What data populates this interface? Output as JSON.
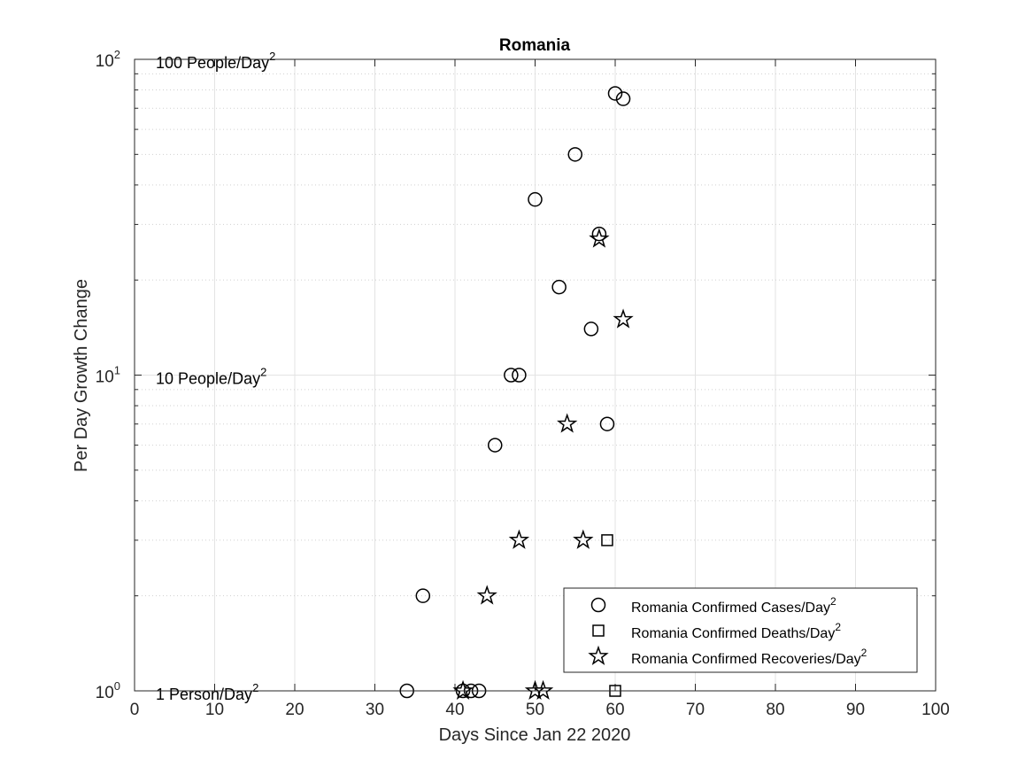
{
  "chart_data": {
    "type": "scatter",
    "title": "Romania",
    "xlabel": "Days Since Jan 22 2020",
    "ylabel": "Per Day Growth Change",
    "xlim": [
      0,
      100
    ],
    "ylim": [
      1,
      100
    ],
    "yscale": "log",
    "grid": true,
    "legend_position": "bottom-right",
    "x_ticks": [
      "0",
      "10",
      "20",
      "30",
      "40",
      "50",
      "60",
      "70",
      "80",
      "90",
      "100"
    ],
    "y_ticks": [
      {
        "value": 1,
        "base": "10",
        "exp": "0"
      },
      {
        "value": 10,
        "base": "10",
        "exp": "1"
      },
      {
        "value": 100,
        "base": "10",
        "exp": "2"
      }
    ],
    "annotations": [
      {
        "value": 100,
        "text": "100 People/Day",
        "sup": "2"
      },
      {
        "value": 10,
        "text": "10 People/Day",
        "sup": "2"
      },
      {
        "value": 1,
        "text": "1 Person/Day",
        "sup": "2"
      }
    ],
    "series": [
      {
        "name": "Romania Confirmed Cases/Day",
        "name_sup": "2",
        "marker": "circle",
        "points": [
          [
            34,
            1
          ],
          [
            36,
            2
          ],
          [
            41,
            1
          ],
          [
            42,
            1
          ],
          [
            43,
            1
          ],
          [
            45,
            6
          ],
          [
            47,
            10
          ],
          [
            48,
            10
          ],
          [
            50,
            36
          ],
          [
            53,
            19
          ],
          [
            55,
            50
          ],
          [
            57,
            14
          ],
          [
            58,
            28
          ],
          [
            59,
            7
          ],
          [
            60,
            78
          ],
          [
            61,
            75
          ]
        ]
      },
      {
        "name": "Romania Confirmed Deaths/Day",
        "name_sup": "2",
        "marker": "square",
        "points": [
          [
            59,
            3
          ],
          [
            60,
            1
          ]
        ]
      },
      {
        "name": "Romania Confirmed Recoveries/Day",
        "name_sup": "2",
        "marker": "star",
        "points": [
          [
            41,
            1
          ],
          [
            44,
            2
          ],
          [
            48,
            3
          ],
          [
            50,
            1
          ],
          [
            51,
            1
          ],
          [
            54,
            7
          ],
          [
            56,
            3
          ],
          [
            58,
            27
          ],
          [
            61,
            15
          ]
        ]
      }
    ]
  }
}
